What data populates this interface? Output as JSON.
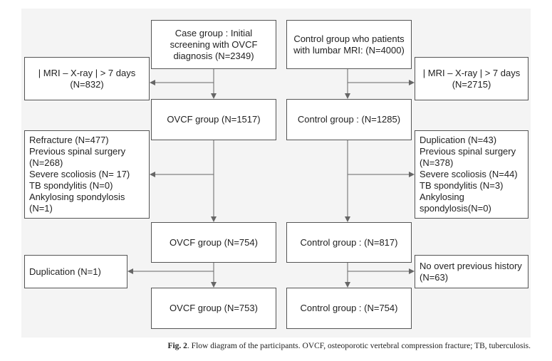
{
  "flow": {
    "left": {
      "initial": {
        "lines": [
          "Case group : Initial",
          "screening with OVCF",
          "diagnosis (N=2349)"
        ]
      },
      "excl1": {
        "lines": [
          "| MRI – X-ray | > 7 days",
          "(N=832)"
        ]
      },
      "step2": {
        "text": "OVCF group (N=1517)"
      },
      "excl2": {
        "lines": [
          "Refracture (N=477)",
          "Previous spinal surgery",
          "(N=268)",
          "Severe scoliosis (N= 17)",
          "TB spondylitis (N=0)",
          "Ankylosing spondylosis",
          "(N=1)"
        ]
      },
      "step3": {
        "text": "OVCF group (N=754)"
      },
      "excl3": {
        "text": "Duplication (N=1)"
      },
      "final": {
        "text": "OVCF group (N=753)"
      }
    },
    "right": {
      "initial": {
        "lines": [
          "Control group who patients",
          "with lumbar MRI: (N=4000)"
        ]
      },
      "excl1": {
        "lines": [
          "| MRI – X-ray | > 7 days",
          "(N=2715)"
        ]
      },
      "step2": {
        "text": "Control group : (N=1285)"
      },
      "excl2": {
        "lines": [
          "Duplication (N=43)",
          "Previous spinal surgery",
          "(N=378)",
          "Severe scoliosis (N=44)",
          "TB spondylitis (N=3)",
          "Ankylosing",
          "spondylosis(N=0)"
        ]
      },
      "step3": {
        "text": "Control group : (N=817)"
      },
      "excl3": {
        "lines": [
          "No overt previous history",
          "(N=63)"
        ]
      },
      "final": {
        "text": "Control group : (N=754)"
      }
    }
  },
  "caption": {
    "label": "Fig. 2",
    "text": ". Flow diagram of the participants. OVCF, osteoporotic vertebral compression fracture; TB, tuberculosis."
  },
  "colors": {
    "panel": "#f4f4f4",
    "border": "#555555",
    "connector": "#666666"
  }
}
